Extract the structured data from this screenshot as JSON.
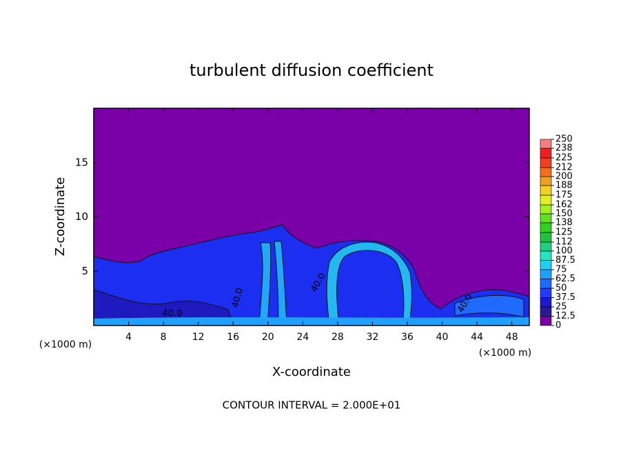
{
  "chart_data": {
    "type": "contour",
    "title": "turbulent diffusion coefficient",
    "xlabel": "X-coordinate",
    "ylabel": "Z-coordinate",
    "x_unit": "(×1000 m)",
    "footer": "CONTOUR INTERVAL = 2.000E+01",
    "xlim": [
      0,
      50
    ],
    "ylim": [
      0,
      20
    ],
    "xticks": [
      4,
      8,
      12,
      16,
      20,
      24,
      28,
      32,
      36,
      40,
      44,
      48
    ],
    "yticks": [
      5,
      10,
      15
    ],
    "contour_labels": [
      "40.0",
      "40.0",
      "40.0",
      "40.0"
    ],
    "colorbar": {
      "lim": [
        0,
        250
      ],
      "ticks": [
        0,
        12.5,
        25,
        37.5,
        50,
        62.5,
        75,
        87.5,
        100,
        112,
        125,
        138,
        150,
        162,
        175,
        188,
        200,
        212,
        225,
        238,
        250
      ],
      "colors": [
        "#7a00a6",
        "#2a1a9a",
        "#1a1acc",
        "#1f3cff",
        "#1f6bff",
        "#1fa0ff",
        "#20d0f0",
        "#20e8c0",
        "#20d080",
        "#20c040",
        "#30d020",
        "#60e020",
        "#a0f020",
        "#e0f020",
        "#f0d020",
        "#f0a020",
        "#f07020",
        "#f04020",
        "#f02020",
        "#f08080"
      ]
    }
  }
}
